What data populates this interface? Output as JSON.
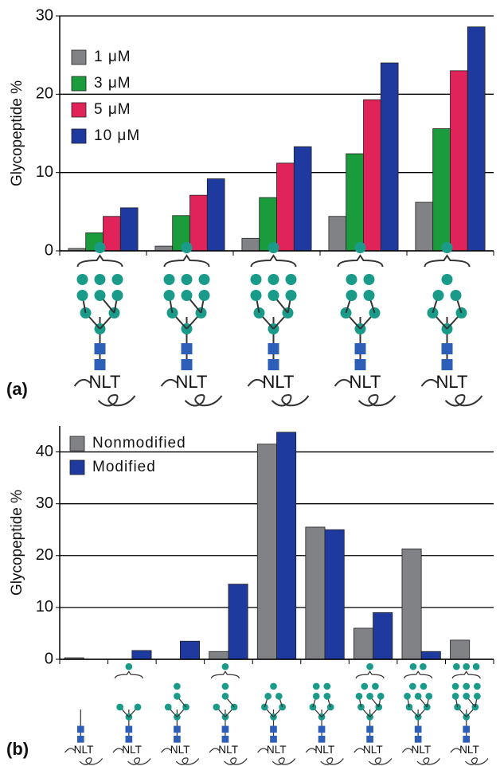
{
  "chart_data": [
    {
      "type": "bar",
      "panel_label": "(a)",
      "y_label": "Glycopeptide %",
      "categories": [
        "NLT",
        "NLT",
        "NLT",
        "NLT",
        "NLT"
      ],
      "series": [
        {
          "name": "1 μM",
          "color": "#808285",
          "values": [
            0.3,
            0.6,
            1.6,
            4.4,
            6.2
          ]
        },
        {
          "name": "3 μM",
          "color": "#1a9b3c",
          "values": [
            2.3,
            4.5,
            6.8,
            12.4,
            15.6
          ]
        },
        {
          "name": "5 μM",
          "color": "#e0245a",
          "values": [
            4.4,
            7.1,
            11.2,
            19.3,
            23.0
          ]
        },
        {
          "name": "10 μM",
          "color": "#1f3a9e",
          "values": [
            5.5,
            9.2,
            13.3,
            24.0,
            28.6
          ]
        }
      ],
      "ylim": [
        0,
        30
      ],
      "yticks": [
        0,
        10,
        20,
        30
      ],
      "grid": true,
      "legend": "upper-left"
    },
    {
      "type": "bar",
      "panel_label": "(b)",
      "y_label": "Glycopeptide %",
      "categories": [
        "NLT",
        "NLT",
        "NLT",
        "NLT",
        "NLT",
        "NLT",
        "NLT",
        "NLT",
        "NLT"
      ],
      "series": [
        {
          "name": "Nonmodified",
          "color": "#808285",
          "values": [
            0.3,
            0,
            0,
            1.5,
            41.5,
            25.5,
            6.0,
            21.3,
            3.7
          ]
        },
        {
          "name": "Modified",
          "color": "#1f3a9e",
          "values": [
            0,
            1.7,
            3.5,
            14.5,
            43.8,
            25.0,
            9.0,
            1.5,
            0
          ]
        }
      ],
      "ylim": [
        0,
        45
      ],
      "yticks": [
        0,
        10,
        20,
        30,
        40
      ],
      "grid": true,
      "legend": "upper-left"
    }
  ]
}
